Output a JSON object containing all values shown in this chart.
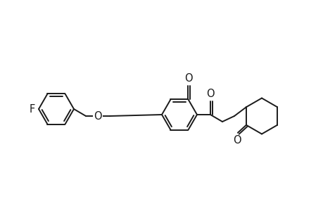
{
  "background_color": "#ffffff",
  "line_color": "#1a1a1a",
  "line_width": 1.4,
  "font_size": 10.5,
  "fig_width": 4.6,
  "fig_height": 3.0,
  "dpi": 100,
  "xlim": [
    0,
    46
  ],
  "ylim": [
    0,
    30
  ],
  "labels": {
    "F": "F",
    "O1": "O",
    "O2": "O",
    "O3": "O"
  }
}
